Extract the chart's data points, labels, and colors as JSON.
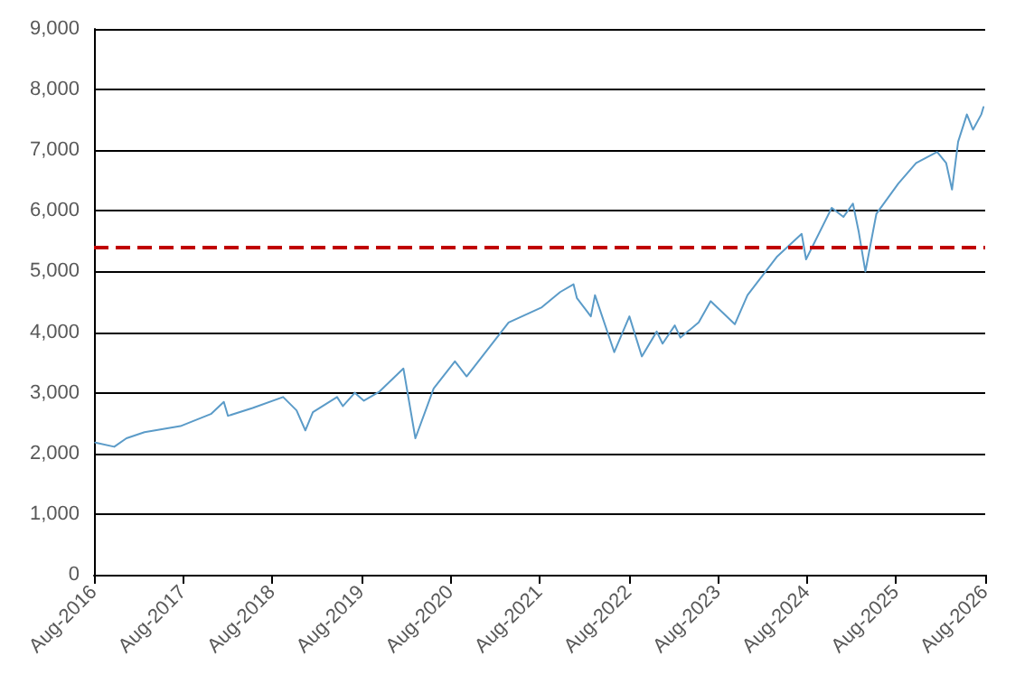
{
  "chart_data": {
    "type": "line",
    "x": [
      "2016-08-06",
      "2016-10-23",
      "2016-12-12",
      "2017-02-24",
      "2017-07-21",
      "2017-11-23",
      "2018-01-15",
      "2018-02-01",
      "2018-05-13",
      "2018-09-15",
      "2018-11-09",
      "2018-12-15",
      "2019-01-15",
      "2019-04-24",
      "2019-05-18",
      "2019-07-06",
      "2019-08-12",
      "2019-10-15",
      "2020-01-21",
      "2020-03-10",
      "2020-05-24",
      "2020-08-19",
      "2020-10-06",
      "2021-03-27",
      "2021-08-10",
      "2021-10-24",
      "2021-12-18",
      "2022-01-01",
      "2022-02-27",
      "2022-03-16",
      "2022-06-03",
      "2022-08-04",
      "2022-09-24",
      "2022-11-24",
      "2022-12-18",
      "2023-02-06",
      "2023-03-01",
      "2023-05-15",
      "2023-07-03",
      "2023-10-10",
      "2023-12-01",
      "2024-04-01",
      "2024-07-10",
      "2024-07-28",
      "2024-11-10",
      "2024-12-28",
      "2025-02-05",
      "2025-03-01",
      "2025-03-28",
      "2025-05-12",
      "2025-08-10",
      "2025-10-22",
      "2026-01-16",
      "2026-02-22",
      "2026-03-18",
      "2026-04-12",
      "2026-05-18",
      "2026-06-12",
      "2026-07-16",
      "2026-07-25"
    ],
    "series": [
      {
        "color": "#5b9bc8",
        "values": [
          2180,
          2110,
          2250,
          2350,
          2450,
          2650,
          2850,
          2620,
          2750,
          2930,
          2710,
          2380,
          2680,
          2930,
          2780,
          3000,
          2870,
          3020,
          3400,
          2250,
          3070,
          3520,
          3270,
          4160,
          4410,
          4660,
          4790,
          4560,
          4260,
          4610,
          3670,
          4260,
          3600,
          4010,
          3810,
          4110,
          3910,
          4160,
          4510,
          4130,
          4610,
          5250,
          5620,
          5200,
          6050,
          5900,
          6120,
          5650,
          5000,
          5950,
          6450,
          6790,
          6970,
          6790,
          6350,
          7140,
          7590,
          7340,
          7590,
          7710
        ]
      }
    ],
    "xlim": [
      "2016-08",
      "2026-08"
    ],
    "xticks": [
      {
        "value": "2016-08",
        "label": "Aug-2016"
      },
      {
        "value": "2017-08",
        "label": "Aug-2017"
      },
      {
        "value": "2018-08",
        "label": "Aug-2018"
      },
      {
        "value": "2019-08",
        "label": "Aug-2019"
      },
      {
        "value": "2020-08",
        "label": "Aug-2020"
      },
      {
        "value": "2021-08",
        "label": "Aug-2021"
      },
      {
        "value": "2022-08",
        "label": "Aug-2022"
      },
      {
        "value": "2023-08",
        "label": "Aug-2023"
      },
      {
        "value": "2024-08",
        "label": "Aug-2024"
      },
      {
        "value": "2025-08",
        "label": "Aug-2025"
      },
      {
        "value": "2026-08",
        "label": "Aug-2026"
      }
    ],
    "ylim": [
      0,
      9000
    ],
    "yticks": [
      0,
      {
        "value": 1000,
        "label": "1,000"
      },
      {
        "value": 2000,
        "label": "2,000"
      },
      {
        "value": 3000,
        "label": "3,000"
      },
      {
        "value": 4000,
        "label": "4,000"
      },
      {
        "value": 5000,
        "label": "5,000"
      },
      {
        "value": 6000,
        "label": "6,000"
      },
      {
        "value": 7000,
        "label": "7,000"
      },
      {
        "value": 8000,
        "label": "8,000"
      },
      {
        "value": 9000,
        "label": "9,000"
      }
    ],
    "grid": "y",
    "marker": "none",
    "line_style": "solid",
    "ref_lines": [
      {
        "axis": "y",
        "value": 5400,
        "color": "#c00000",
        "line_style": "dashed"
      }
    ]
  }
}
